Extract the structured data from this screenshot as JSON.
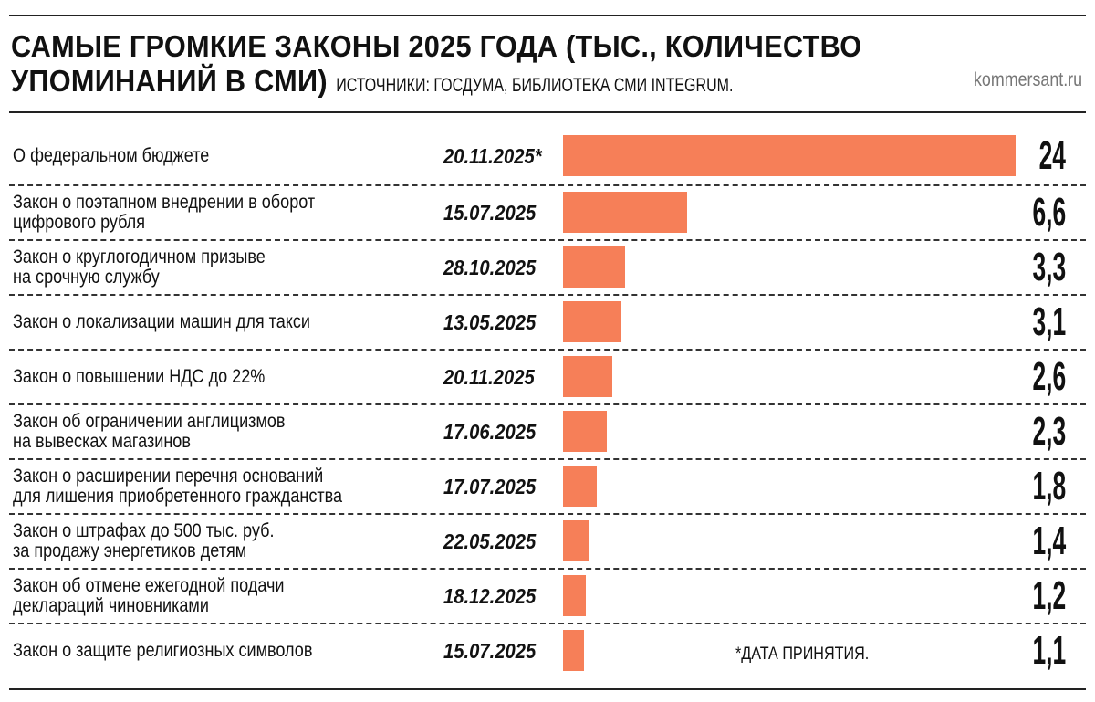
{
  "header": {
    "title_line1": "САМЫЕ ГРОМКИЕ ЗАКОНЫ 2025 ГОДА (ТЫС., КОЛИЧЕСТВО",
    "title_line2": "УПОМИНАНИЙ В СМИ)",
    "source": "ИСТОЧНИКИ: ГОСДУМА, БИБЛИОТЕКА СМИ INTEGRUM.",
    "site": "kommersant.ru"
  },
  "footnote": "*ДАТА ПРИНЯТИЯ.",
  "chart_data": {
    "type": "bar",
    "orientation": "horizontal",
    "title": "САМЫЕ ГРОМКИЕ ЗАКОНЫ 2025 ГОДА (ТЫС., КОЛИЧЕСТВО УПОМИНАНИЙ В СМИ)",
    "bar_color": "#F67F58",
    "xlim": [
      0,
      24
    ],
    "grid": false,
    "rows": [
      {
        "label": [
          "О федеральном бюджете"
        ],
        "date": "20.11.2025*",
        "value": 24,
        "display": "24"
      },
      {
        "label": [
          "Закон о поэтапном внедрении в оборот",
          "цифрового рубля"
        ],
        "date": "15.07.2025",
        "value": 6.6,
        "display": "6,6"
      },
      {
        "label": [
          "Закон о круглогодичном призыве",
          "на срочную службу"
        ],
        "date": "28.10.2025",
        "value": 3.3,
        "display": "3,3"
      },
      {
        "label": [
          "Закон о локализации машин для такси"
        ],
        "date": "13.05.2025",
        "value": 3.1,
        "display": "3,1"
      },
      {
        "label": [
          "Закон о повышении НДС до 22%"
        ],
        "date": "20.11.2025",
        "value": 2.6,
        "display": "2,6"
      },
      {
        "label": [
          "Закон об ограничении англицизмов",
          "на вывесках магазинов"
        ],
        "date": "17.06.2025",
        "value": 2.3,
        "display": "2,3"
      },
      {
        "label": [
          "Закон о расширении перечня оснований",
          "для лишения приобретенного гражданства"
        ],
        "date": "17.07.2025",
        "value": 1.8,
        "display": "1,8"
      },
      {
        "label": [
          "Закон о штрафах до 500 тыс. руб.",
          "за продажу энергетиков детям"
        ],
        "date": "22.05.2025",
        "value": 1.4,
        "display": "1,4"
      },
      {
        "label": [
          "Закон об отмене ежегодной подачи",
          "деклараций чиновниками"
        ],
        "date": "18.12.2025",
        "value": 1.2,
        "display": "1,2"
      },
      {
        "label": [
          "Закон о защите религиозных символов"
        ],
        "date": "15.07.2025",
        "value": 1.1,
        "display": "1,1"
      }
    ]
  }
}
